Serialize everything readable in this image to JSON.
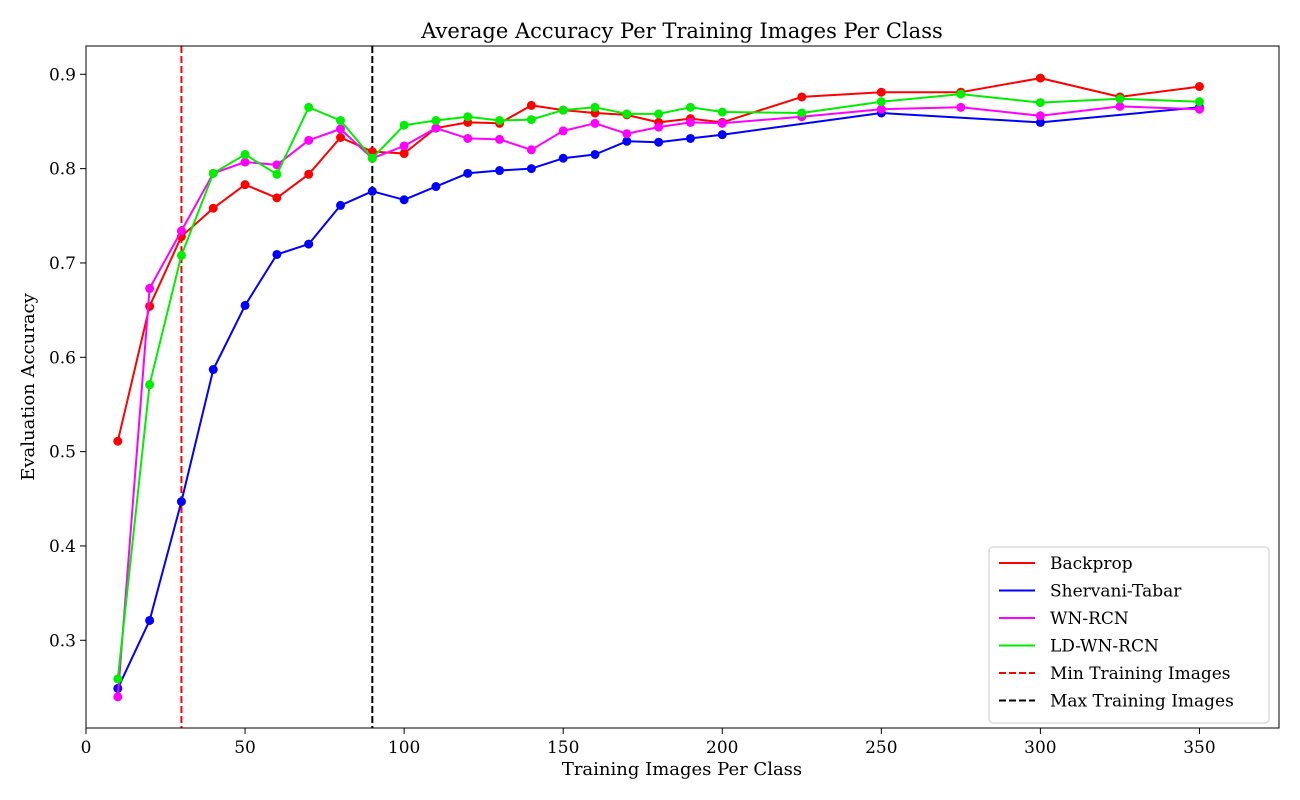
{
  "chart_data": {
    "type": "line",
    "title": "Average Accuracy Per Training Images Per Class",
    "xlabel": "Training Images Per Class",
    "ylabel": "Evaluation Accuracy",
    "xlim": [
      0,
      375
    ],
    "ylim": [
      0.207,
      0.93
    ],
    "xticks": [
      0,
      50,
      100,
      150,
      200,
      250,
      300,
      350
    ],
    "yticks": [
      0.3,
      0.4,
      0.5,
      0.6,
      0.7,
      0.8,
      0.9
    ],
    "grid": false,
    "legend": "bottom-right",
    "x": [
      10,
      20,
      30,
      40,
      50,
      60,
      70,
      80,
      90,
      100,
      110,
      120,
      130,
      140,
      150,
      160,
      170,
      180,
      190,
      200,
      225,
      250,
      275,
      300,
      325,
      350
    ],
    "series": [
      {
        "name": "Backprop",
        "color": "#ff0000",
        "x": [
          10,
          20,
          30,
          40,
          50,
          60,
          70,
          80,
          90,
          100,
          110,
          120,
          130,
          140,
          150,
          160,
          170,
          180,
          190,
          200,
          225,
          250,
          275,
          300,
          325,
          350
        ],
        "values": [
          0.511,
          0.654,
          0.728,
          0.758,
          0.783,
          0.769,
          0.794,
          0.833,
          0.818,
          0.816,
          0.843,
          0.849,
          0.848,
          0.867,
          0.862,
          0.859,
          0.857,
          0.849,
          0.853,
          0.849,
          0.876,
          0.881,
          0.881,
          0.896,
          0.876,
          0.887
        ]
      },
      {
        "name": "Shervani-Tabar",
        "color": "#0000ff",
        "x": [
          10,
          20,
          30,
          40,
          50,
          60,
          70,
          80,
          90,
          100,
          110,
          120,
          130,
          140,
          150,
          160,
          170,
          180,
          190,
          200,
          250,
          300,
          350
        ],
        "values": [
          0.249,
          0.321,
          0.447,
          0.587,
          0.655,
          0.709,
          0.72,
          0.761,
          0.776,
          0.767,
          0.781,
          0.795,
          0.798,
          0.8,
          0.811,
          0.815,
          0.829,
          0.828,
          0.832,
          0.836,
          0.859,
          0.849,
          0.865
        ]
      },
      {
        "name": "WN-RCN",
        "color": "#ff00ff",
        "x": [
          10,
          20,
          30,
          40,
          50,
          60,
          70,
          80,
          90,
          100,
          110,
          120,
          130,
          140,
          150,
          160,
          170,
          180,
          190,
          200,
          225,
          250,
          275,
          300,
          325,
          350
        ],
        "values": [
          0.24,
          0.673,
          0.734,
          0.795,
          0.807,
          0.804,
          0.83,
          0.842,
          0.811,
          0.824,
          0.843,
          0.832,
          0.831,
          0.82,
          0.84,
          0.848,
          0.837,
          0.844,
          0.849,
          0.848,
          0.855,
          0.863,
          0.865,
          0.856,
          0.866,
          0.863
        ]
      },
      {
        "name": "LD-WN-RCN",
        "color": "#00ee00",
        "x": [
          10,
          20,
          30,
          40,
          50,
          60,
          70,
          80,
          90,
          100,
          110,
          120,
          130,
          140,
          150,
          160,
          170,
          180,
          190,
          200,
          225,
          250,
          275,
          300,
          325,
          350
        ],
        "values": [
          0.259,
          0.571,
          0.708,
          0.795,
          0.815,
          0.794,
          0.865,
          0.851,
          0.811,
          0.846,
          0.851,
          0.855,
          0.851,
          0.852,
          0.862,
          0.865,
          0.858,
          0.858,
          0.865,
          0.86,
          0.859,
          0.871,
          0.879,
          0.87,
          0.874,
          0.871
        ]
      }
    ],
    "vlines": [
      {
        "name": "Min Training Images",
        "x": 30,
        "color": "#ff0000",
        "style": "dashed"
      },
      {
        "name": "Max Training Images",
        "x": 90,
        "color": "#000000",
        "style": "dashed"
      }
    ]
  }
}
